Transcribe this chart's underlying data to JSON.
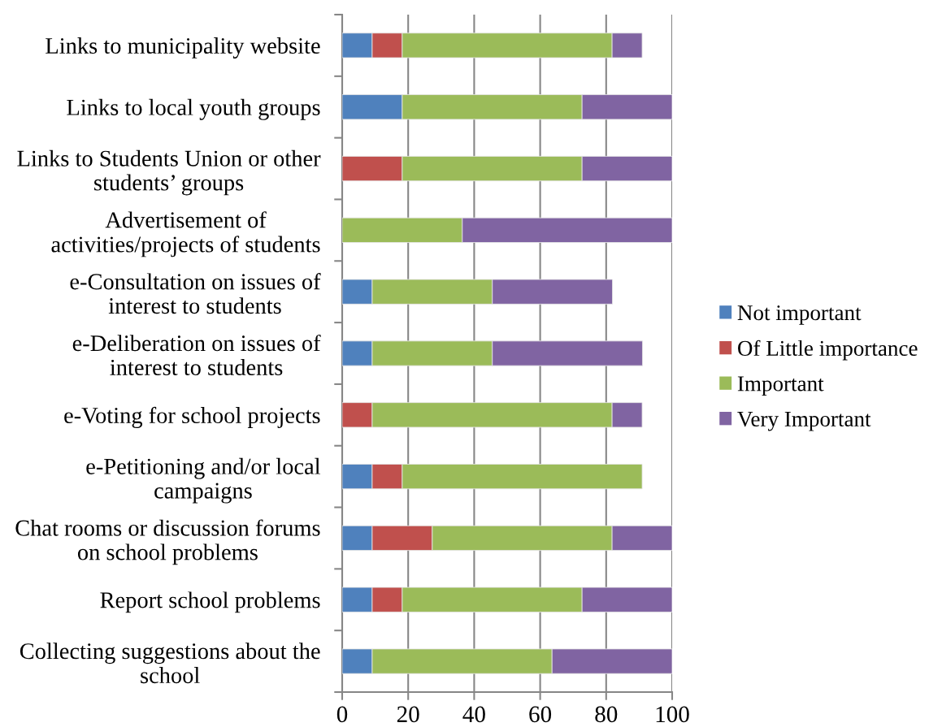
{
  "chart_data": {
    "type": "bar",
    "orientation": "horizontal",
    "stacked": true,
    "categories": [
      "Links to municipality website",
      "Links to local youth groups",
      "Links to Students Union or other\nstudents’ groups",
      "Advertisement of\nactivities/projects of students",
      "e-Consultation on issues of\ninterest to students",
      "e-Deliberation on issues of\ninterest to students",
      "e-Voting for school projects",
      "e-Petitioning and/or local\ncampaigns",
      "Chat rooms or discussion forums\non school problems",
      "Report school problems",
      "Collecting suggestions about the\nschool"
    ],
    "series": [
      {
        "name": "Not important",
        "color": "#4f81bd",
        "values": [
          9.1,
          18.2,
          null,
          null,
          9.1,
          9.1,
          null,
          9.1,
          9.1,
          9.1,
          9.1
        ]
      },
      {
        "name": "Of Little importance",
        "color": "#c0504d",
        "values": [
          9.1,
          null,
          18.2,
          null,
          null,
          null,
          9.1,
          9.1,
          18.2,
          9.1,
          null
        ]
      },
      {
        "name": "Important",
        "color": "#9bbb59",
        "values": [
          63.6,
          54.5,
          54.5,
          36.4,
          36.4,
          36.4,
          72.7,
          72.7,
          54.5,
          54.5,
          54.5
        ]
      },
      {
        "name": "Very Important",
        "color": "#8064a2",
        "values": [
          9.1,
          27.3,
          27.3,
          63.6,
          36.4,
          45.5,
          9.1,
          null,
          18.2,
          27.3,
          36.4
        ]
      }
    ],
    "xlim": [
      0,
      100
    ],
    "xticks": [
      0,
      20,
      40,
      60,
      80,
      100
    ],
    "grid": "x",
    "legend": "right"
  }
}
